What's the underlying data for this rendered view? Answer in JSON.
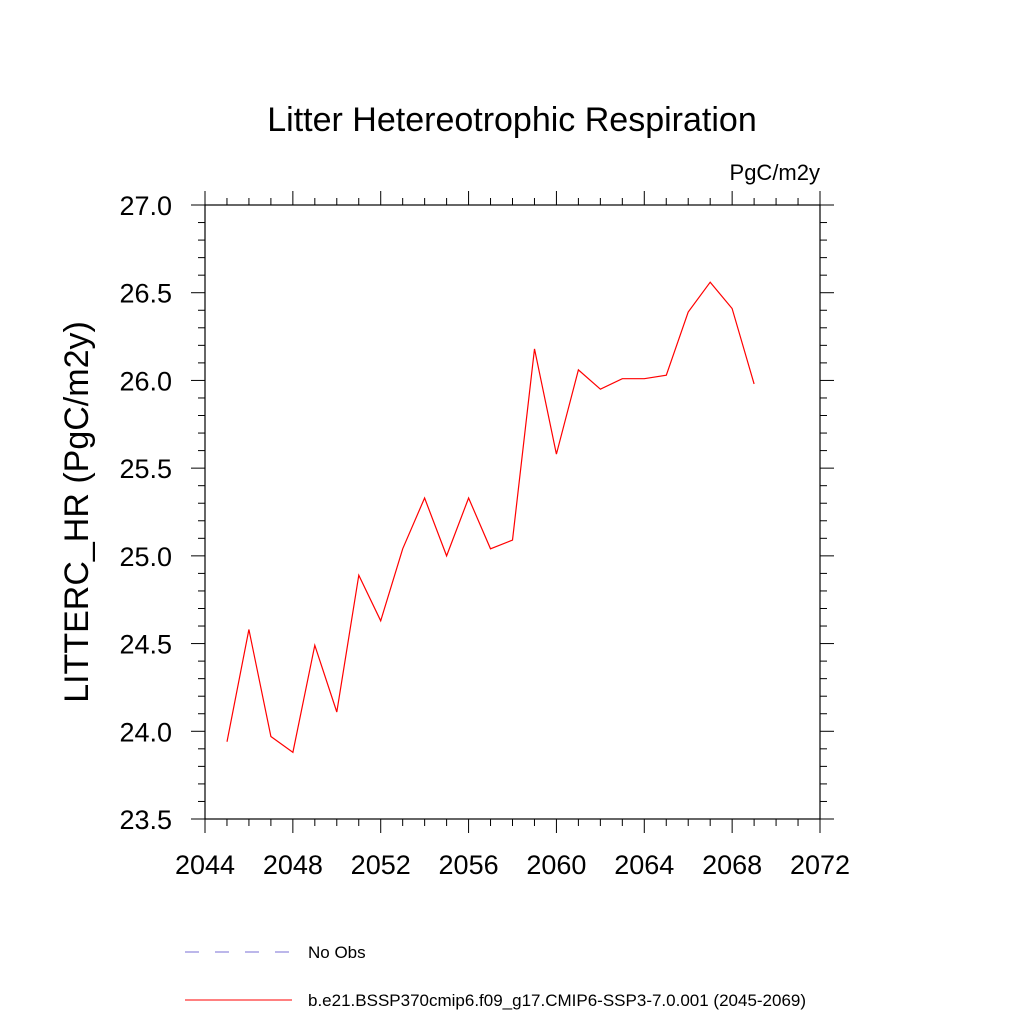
{
  "chart_data": {
    "type": "line",
    "title": "Litter Hetereotrophic Respiration",
    "units": "PgC/m2y",
    "ylabel": "LITTERC_HR  (PgC/m2y)",
    "xlabel": "",
    "xlim": [
      2044,
      2072
    ],
    "ylim": [
      23.5,
      27.0
    ],
    "xticks": [
      "2044",
      "2048",
      "2052",
      "2056",
      "2060",
      "2064",
      "2068",
      "2072"
    ],
    "yticks": [
      "23.5",
      "24.0",
      "24.5",
      "25.0",
      "25.5",
      "26.0",
      "26.5",
      "27.0"
    ],
    "grid": false,
    "legend_position": "bottom",
    "series": [
      {
        "name": "b.e21.BSSP370cmip6.f09_g17.CMIP6-SSP3-7.0.001 (2045-2069)",
        "color": "#ff0000",
        "x": [
          2045,
          2046,
          2047,
          2048,
          2049,
          2050,
          2051,
          2052,
          2053,
          2054,
          2055,
          2056,
          2057,
          2058,
          2059,
          2060,
          2061,
          2062,
          2063,
          2064,
          2065,
          2066,
          2067,
          2068,
          2069
        ],
        "y": [
          23.94,
          24.58,
          23.97,
          23.88,
          24.49,
          24.11,
          24.89,
          24.63,
          25.04,
          25.33,
          25.0,
          25.33,
          25.04,
          25.09,
          26.18,
          25.58,
          26.06,
          25.95,
          26.01,
          26.01,
          26.03,
          26.39,
          26.56,
          26.41,
          25.98
        ]
      }
    ],
    "legend": [
      {
        "label": "No Obs",
        "style": "dashed",
        "color": "#7a6fd6"
      },
      {
        "label": "b.e21.BSSP370cmip6.f09_g17.CMIP6-SSP3-7.0.001 (2045-2069)",
        "style": "solid",
        "color": "#ff0000"
      }
    ]
  }
}
